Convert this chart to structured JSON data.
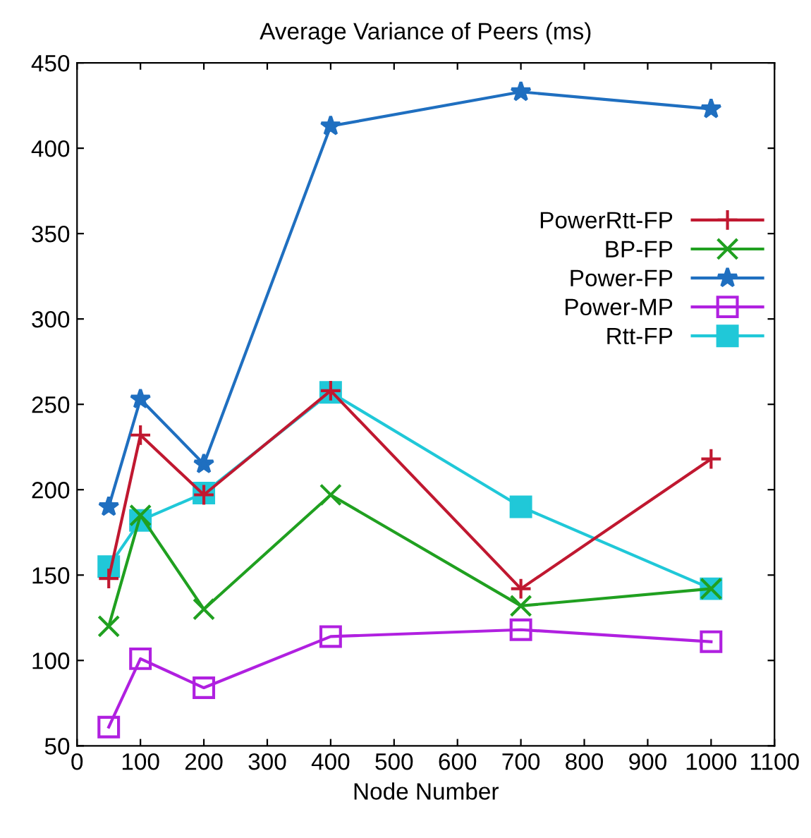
{
  "chart_data": {
    "type": "line",
    "title": "Average Variance of Peers (ms)",
    "xlabel": "Node Number",
    "x": [
      50,
      100,
      200,
      400,
      700,
      1000
    ],
    "series": [
      {
        "name": "PowerRtt-FP",
        "color": "#c01830",
        "marker": "plus",
        "values": [
          148,
          232,
          197,
          258,
          142,
          218
        ]
      },
      {
        "name": "BP-FP",
        "color": "#20a020",
        "marker": "x",
        "values": [
          120,
          185,
          130,
          197,
          132,
          142
        ]
      },
      {
        "name": "Power-FP",
        "color": "#1f6fc0",
        "marker": "star",
        "values": [
          190,
          253,
          215,
          413,
          433,
          423
        ]
      },
      {
        "name": "Power-MP",
        "color": "#b020e0",
        "marker": "square_open",
        "values": [
          61,
          101,
          84,
          114,
          118,
          111
        ]
      },
      {
        "name": "Rtt-FP",
        "color": "#20c8d8",
        "marker": "square",
        "values": [
          155,
          182,
          198,
          257,
          190,
          142
        ]
      }
    ],
    "xlim": [
      0,
      1100
    ],
    "xticks": [
      0,
      100,
      200,
      300,
      400,
      500,
      600,
      700,
      800,
      900,
      1000,
      1100
    ],
    "ylim": [
      50,
      450
    ],
    "yticks": [
      50,
      100,
      150,
      200,
      250,
      300,
      350,
      400,
      450
    ],
    "grid": false,
    "legend": "top right",
    "line_style": "solid"
  }
}
